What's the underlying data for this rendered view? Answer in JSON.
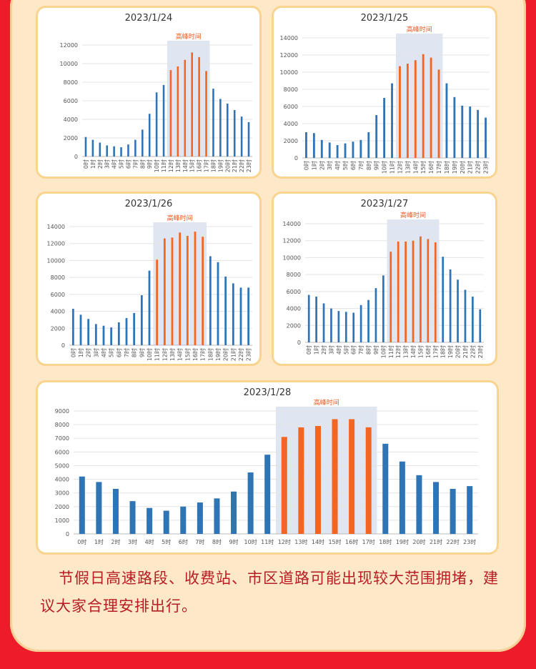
{
  "peak_label": "高峰时间",
  "hour_suffix": "时",
  "colors": {
    "normal": "#2f75b5",
    "peak": "#f26522",
    "peak_bg": "#dfe6f1",
    "grid": "#e3e3e3"
  },
  "caption": "节假日高速路段、收费站、市区道路可能出现较大范围拥堵，建议大家合理安排出行。",
  "chart_data": [
    {
      "type": "bar",
      "title": "2023/1/24",
      "categories": [
        "0",
        "1",
        "2",
        "3",
        "4",
        "5",
        "6",
        "7",
        "8",
        "9",
        "10",
        "11",
        "12",
        "13",
        "14",
        "15",
        "16",
        "17",
        "18",
        "19",
        "20",
        "21",
        "22",
        "23"
      ],
      "values": [
        2100,
        1800,
        1500,
        1200,
        1100,
        1000,
        1300,
        1800,
        2900,
        4600,
        6900,
        7700,
        9300,
        9700,
        10400,
        11200,
        10700,
        9200,
        7300,
        6200,
        5700,
        5000,
        4300,
        3700
      ],
      "peak_range": [
        12,
        17
      ],
      "ylim": [
        0,
        12000
      ],
      "yticks": [
        0,
        2000,
        4000,
        6000,
        8000,
        10000,
        12000
      ]
    },
    {
      "type": "bar",
      "title": "2023/1/25",
      "categories": [
        "0",
        "1",
        "2",
        "3",
        "4",
        "5",
        "6",
        "7",
        "8",
        "9",
        "10",
        "11",
        "12",
        "13",
        "14",
        "15",
        "16",
        "17",
        "18",
        "19",
        "20",
        "21",
        "22",
        "23"
      ],
      "values": [
        3000,
        2900,
        2100,
        1800,
        1500,
        1700,
        1900,
        2100,
        3000,
        5000,
        7000,
        8700,
        10700,
        11000,
        11400,
        12100,
        11700,
        10300,
        8700,
        7100,
        6100,
        6000,
        5600,
        4700
      ],
      "peak_range": [
        12,
        17
      ],
      "ylim": [
        0,
        14000
      ],
      "yticks": [
        0,
        2000,
        4000,
        6000,
        8000,
        10000,
        12000,
        14000
      ]
    },
    {
      "type": "bar",
      "title": "2023/1/26",
      "categories": [
        "0",
        "1",
        "2",
        "3",
        "4",
        "5",
        "6",
        "7",
        "8",
        "9",
        "10",
        "11",
        "12",
        "13",
        "14",
        "15",
        "16",
        "17",
        "18",
        "19",
        "20",
        "21",
        "22",
        "23"
      ],
      "values": [
        4300,
        3600,
        3100,
        2500,
        2300,
        2100,
        2700,
        3200,
        3800,
        5900,
        8800,
        10100,
        12600,
        12700,
        13300,
        12900,
        13400,
        12800,
        10500,
        9800,
        8100,
        7300,
        6800,
        6800
      ],
      "peak_range": [
        11,
        17
      ],
      "ylim": [
        0,
        14000
      ],
      "yticks": [
        0,
        2000,
        4000,
        6000,
        8000,
        10000,
        12000,
        14000
      ]
    },
    {
      "type": "bar",
      "title": "2023/1/27",
      "categories": [
        "0",
        "1",
        "2",
        "3",
        "4",
        "5",
        "6",
        "7",
        "8",
        "9",
        "10",
        "11",
        "12",
        "13",
        "14",
        "15",
        "16",
        "17",
        "18",
        "19",
        "20",
        "21",
        "22",
        "23"
      ],
      "values": [
        5600,
        5400,
        4600,
        4000,
        3700,
        3600,
        3500,
        4400,
        5000,
        6400,
        7900,
        10700,
        11900,
        11900,
        12000,
        12500,
        12200,
        11800,
        10100,
        8600,
        7400,
        6200,
        5400,
        3900
      ],
      "peak_range": [
        11,
        17
      ],
      "ylim": [
        0,
        14000
      ],
      "yticks": [
        0,
        2000,
        4000,
        6000,
        8000,
        10000,
        12000,
        14000
      ]
    },
    {
      "type": "bar",
      "title": "2023/1/28",
      "categories": [
        "0",
        "1",
        "2",
        "3",
        "4",
        "5",
        "6",
        "7",
        "8",
        "9",
        "10",
        "11",
        "12",
        "13",
        "14",
        "15",
        "16",
        "17",
        "18",
        "19",
        "20",
        "21",
        "22",
        "23"
      ],
      "values": [
        4200,
        3800,
        3300,
        2400,
        1900,
        1700,
        2000,
        2300,
        2600,
        3100,
        4500,
        5800,
        7100,
        7800,
        7900,
        8400,
        8400,
        7800,
        6600,
        5300,
        4300,
        3800,
        3300,
        3500
      ],
      "peak_range": [
        12,
        17
      ],
      "ylim": [
        0,
        9000
      ],
      "yticks": [
        0,
        1000,
        2000,
        3000,
        4000,
        5000,
        6000,
        7000,
        8000,
        9000
      ]
    }
  ]
}
